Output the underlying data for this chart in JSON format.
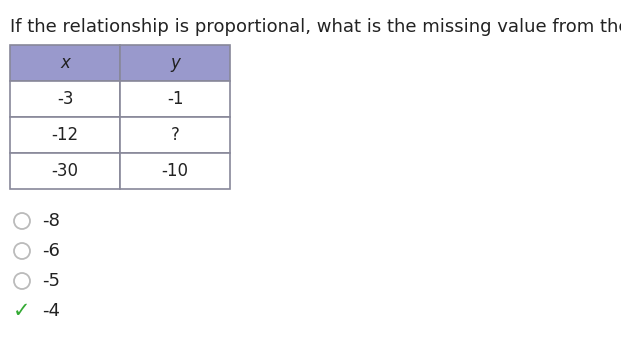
{
  "title": "If the relationship is proportional, what is the missing value from the table?",
  "title_fontsize": 13.0,
  "header_bg": "#9999cc",
  "header_labels": [
    "x",
    "y"
  ],
  "rows": [
    [
      "-3",
      "-1"
    ],
    [
      "-12",
      "?"
    ],
    [
      "-30",
      "-10"
    ]
  ],
  "border_color": "#888899",
  "choices": [
    "-8",
    "-6",
    "-5",
    "-4"
  ],
  "correct_index": 3,
  "circle_color": "#bbbbbb",
  "check_color": "#33aa33",
  "font_color": "#222222",
  "bg_color": "#ffffff"
}
